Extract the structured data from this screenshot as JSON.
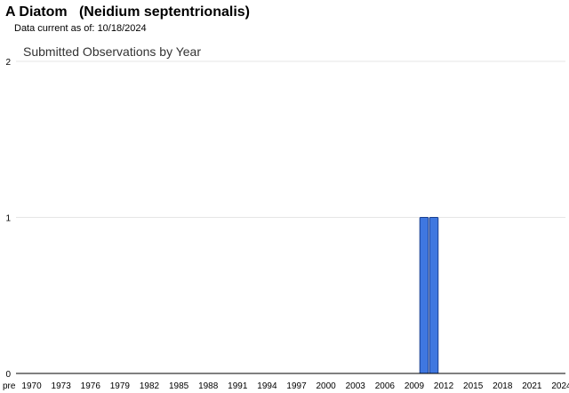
{
  "header": {
    "title": "A Diatom   (Neidium septentrionalis)",
    "data_current_label": "Data current as of:",
    "data_current_date": "10/18/2024"
  },
  "chart_data": {
    "type": "bar",
    "title": "Submitted Observations by Year",
    "xlabel": "",
    "ylabel": "",
    "ylim": [
      0,
      2
    ],
    "yticks": [
      0,
      1,
      2
    ],
    "grid": true,
    "x_tick_labels": [
      "pre",
      "1970",
      "1973",
      "1976",
      "1979",
      "1982",
      "1985",
      "1988",
      "1991",
      "1994",
      "1997",
      "2000",
      "2003",
      "2006",
      "2009",
      "2012",
      "2015",
      "2018",
      "2021",
      "2024"
    ],
    "categories": [
      "pre",
      "1970",
      "1971",
      "1972",
      "1973",
      "1974",
      "1975",
      "1976",
      "1977",
      "1978",
      "1979",
      "1980",
      "1981",
      "1982",
      "1983",
      "1984",
      "1985",
      "1986",
      "1987",
      "1988",
      "1989",
      "1990",
      "1991",
      "1992",
      "1993",
      "1994",
      "1995",
      "1996",
      "1997",
      "1998",
      "1999",
      "2000",
      "2001",
      "2002",
      "2003",
      "2004",
      "2005",
      "2006",
      "2007",
      "2008",
      "2009",
      "2010",
      "2011",
      "2012",
      "2013",
      "2014",
      "2015",
      "2016",
      "2017",
      "2018",
      "2019",
      "2020",
      "2021",
      "2022",
      "2023",
      "2024"
    ],
    "values": [
      0,
      0,
      0,
      0,
      0,
      0,
      0,
      0,
      0,
      0,
      0,
      0,
      0,
      0,
      0,
      0,
      0,
      0,
      0,
      0,
      0,
      0,
      0,
      0,
      0,
      0,
      0,
      0,
      0,
      0,
      0,
      0,
      0,
      0,
      0,
      0,
      0,
      0,
      0,
      0,
      0,
      1,
      1,
      0,
      0,
      0,
      0,
      0,
      0,
      0,
      0,
      0,
      0,
      0,
      0,
      0
    ],
    "colors": {
      "bar_fill": "#3f77e0",
      "bar_stroke": "#1a3f8f",
      "grid": "#e6e6e6",
      "axis": "#000000"
    }
  }
}
